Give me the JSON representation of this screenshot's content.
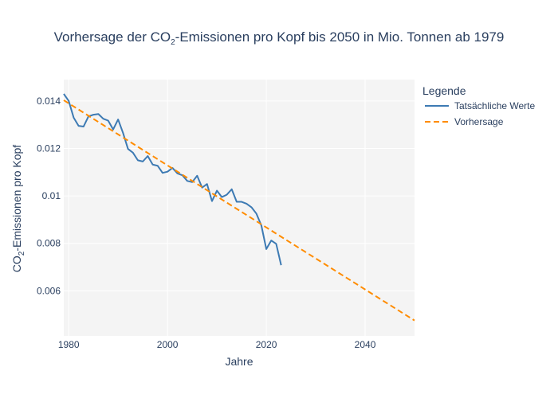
{
  "chart_data": {
    "type": "line",
    "title_pre": "Vorhersage der CO",
    "title_sub": "2",
    "title_post": "-Emissionen pro Kopf bis 2050 in Mio. Tonnen ab 1979",
    "xlabel": "Jahre",
    "ylabel_pre": "CO",
    "ylabel_sub": "2",
    "ylabel_post": "-Emissionen pro Kopf",
    "xlim": [
      1979,
      2050
    ],
    "ylim": [
      0.0041,
      0.0149
    ],
    "x_ticks": [
      1980,
      2000,
      2020,
      2040
    ],
    "y_ticks": [
      {
        "value": 0.006,
        "label": "0.006"
      },
      {
        "value": 0.008,
        "label": "0.008"
      },
      {
        "value": 0.01,
        "label": "0.01"
      },
      {
        "value": 0.012,
        "label": "0.012"
      },
      {
        "value": 0.014,
        "label": "0.014"
      }
    ],
    "grid": true,
    "legend": {
      "title": "Legende",
      "position": "right"
    },
    "series": [
      {
        "name": "Tatsächliche Werte",
        "color": "#3d7ab3",
        "dash": "solid",
        "x": [
          1979,
          1980,
          1981,
          1982,
          1983,
          1984,
          1985,
          1986,
          1987,
          1988,
          1989,
          1990,
          1991,
          1992,
          1993,
          1994,
          1995,
          1996,
          1997,
          1998,
          1999,
          2000,
          2001,
          2002,
          2003,
          2004,
          2005,
          2006,
          2007,
          2008,
          2009,
          2010,
          2011,
          2012,
          2013,
          2014,
          2015,
          2016,
          2017,
          2018,
          2019,
          2020,
          2021,
          2022,
          2023
        ],
        "values": [
          0.0143,
          0.014,
          0.0133,
          0.01295,
          0.01292,
          0.01335,
          0.01342,
          0.01345,
          0.01325,
          0.01317,
          0.0128,
          0.01322,
          0.01265,
          0.01198,
          0.01182,
          0.0115,
          0.01145,
          0.01168,
          0.01132,
          0.01127,
          0.01097,
          0.01102,
          0.01118,
          0.01095,
          0.01087,
          0.01063,
          0.01058,
          0.01085,
          0.01035,
          0.0105,
          0.00978,
          0.01022,
          0.00995,
          0.01005,
          0.01028,
          0.00975,
          0.00975,
          0.00967,
          0.00952,
          0.00925,
          0.00875,
          0.00776,
          0.00812,
          0.00798,
          0.00708
        ]
      },
      {
        "name": "Vorhersage",
        "color": "#ff8c00",
        "dash": "dashed",
        "x": [
          1979,
          2050
        ],
        "values": [
          0.01403,
          0.00475
        ]
      }
    ]
  }
}
